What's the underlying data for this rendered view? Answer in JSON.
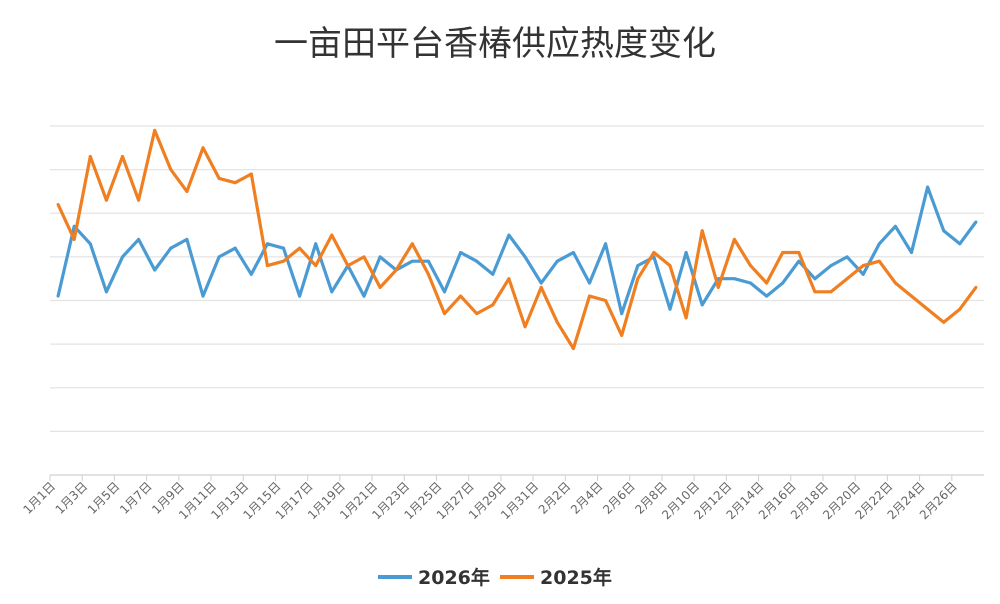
{
  "chart_data": {
    "type": "line",
    "title": "一亩田平台香椿供应热度变化",
    "xlabel": "",
    "ylabel": "",
    "ylim": [
      0,
      8
    ],
    "grid": true,
    "legend_position": "bottom",
    "categories": [
      "1月1日",
      "1月2日",
      "1月3日",
      "1月4日",
      "1月5日",
      "1月6日",
      "1月7日",
      "1月8日",
      "1月9日",
      "1月10日",
      "1月11日",
      "1月12日",
      "1月13日",
      "1月14日",
      "1月15日",
      "1月16日",
      "1月17日",
      "1月18日",
      "1月19日",
      "1月20日",
      "1月21日",
      "1月22日",
      "1月23日",
      "1月24日",
      "1月25日",
      "1月26日",
      "1月27日",
      "1月28日",
      "1月29日",
      "1月30日",
      "1月31日",
      "2月1日",
      "2月2日",
      "2月3日",
      "2月4日",
      "2月5日",
      "2月6日",
      "2月7日",
      "2月8日",
      "2月9日",
      "2月10日",
      "2月11日",
      "2月12日",
      "2月13日",
      "2月14日",
      "2月15日",
      "2月16日",
      "2月17日",
      "2月18日",
      "2月19日",
      "2月20日",
      "2月21日",
      "2月22日",
      "2月23日",
      "2月24日",
      "2月25日",
      "2月26日",
      "2月27日"
    ],
    "series": [
      {
        "name": "2026年",
        "color": "#4a9bd4",
        "values": [
          4.1,
          5.7,
          5.3,
          4.2,
          5.0,
          5.4,
          4.7,
          5.2,
          5.4,
          4.1,
          5.0,
          5.2,
          4.6,
          5.3,
          5.2,
          4.1,
          5.3,
          4.2,
          4.8,
          4.1,
          5.0,
          4.7,
          4.9,
          4.9,
          4.2,
          5.1,
          4.9,
          4.6,
          5.5,
          5.0,
          4.4,
          4.9,
          5.1,
          4.4,
          5.3,
          3.7,
          4.8,
          5.0,
          3.8,
          5.1,
          3.9,
          4.5,
          4.5,
          4.4,
          4.1,
          4.4,
          4.9,
          4.5,
          4.8,
          5.0,
          4.6,
          5.3,
          5.7,
          5.1,
          6.6,
          5.6,
          5.3,
          5.8
        ]
      },
      {
        "name": "2025年",
        "color": "#f07f22",
        "values": [
          6.2,
          5.4,
          7.3,
          6.3,
          7.3,
          6.3,
          7.9,
          7.0,
          6.5,
          7.5,
          6.8,
          6.7,
          6.9,
          4.8,
          4.9,
          5.2,
          4.8,
          5.5,
          4.8,
          5.0,
          4.3,
          4.7,
          5.3,
          4.6,
          3.7,
          4.1,
          3.7,
          3.9,
          4.5,
          3.4,
          4.3,
          3.5,
          2.9,
          4.1,
          4.0,
          3.2,
          4.5,
          5.1,
          4.8,
          3.6,
          5.6,
          4.3,
          5.4,
          4.8,
          4.4,
          5.1,
          5.1,
          4.2,
          4.2,
          4.5,
          4.8,
          4.9,
          4.4,
          4.1,
          3.8,
          3.5,
          3.8,
          4.3
        ]
      }
    ]
  }
}
